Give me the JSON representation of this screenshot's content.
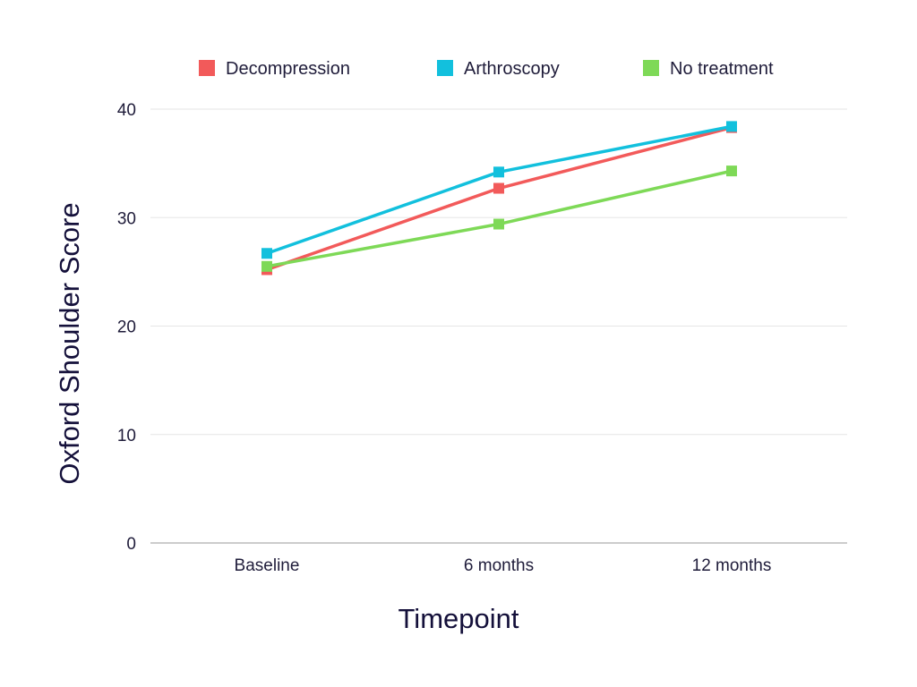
{
  "chart_data": {
    "type": "line",
    "title": "",
    "xlabel": "Timepoint",
    "ylabel": "Oxford Shoulder Score",
    "categories": [
      "Baseline",
      "6 months",
      "12 months"
    ],
    "ylim": [
      0,
      40
    ],
    "yticks": [
      0,
      10,
      20,
      30,
      40
    ],
    "grid": true,
    "legend_position": "top",
    "series": [
      {
        "name": "Decompression",
        "color": "#f25a5a",
        "values": [
          25.2,
          32.7,
          38.3
        ]
      },
      {
        "name": "Arthroscopy",
        "color": "#12c0dd",
        "values": [
          26.7,
          34.2,
          38.4
        ]
      },
      {
        "name": "No treatment",
        "color": "#7ed957",
        "values": [
          25.5,
          29.4,
          34.3
        ]
      }
    ]
  }
}
